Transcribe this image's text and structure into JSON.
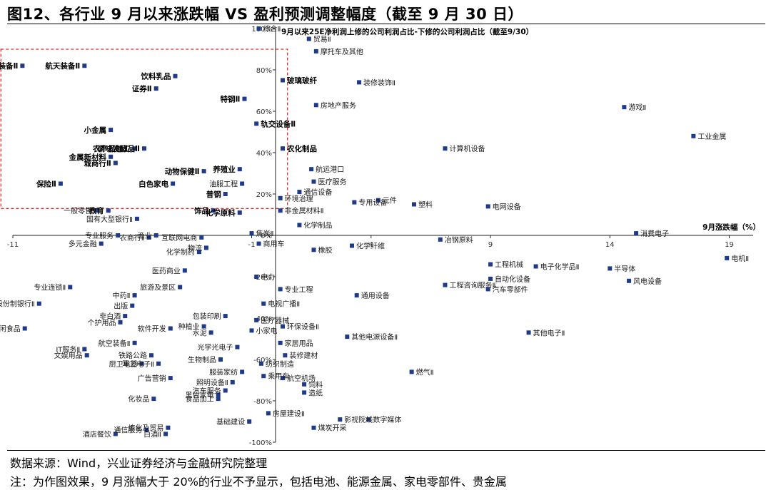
{
  "figure": {
    "title": "图12、各行业 9 月以来涨跌幅 VS 盈利预测调整幅度（截至 9 月 30 日）",
    "source": "数据来源：Wind，兴业证券经济与金融研究院整理",
    "note": "注：为作图效果，9 月涨幅大于 20%的行业不予显示，包括电池、能源金属、家电零部件、贵金属"
  },
  "chart_data": {
    "type": "scatter",
    "xlabel": "9月涨跌幅（%）",
    "ylabel": "9月以来25E净利润上修的公司利润占比-下修的公司利润占比（截至9/30）",
    "xlim": [
      -11,
      20
    ],
    "ylim": [
      -1,
      1
    ],
    "x_ticks": [
      -11,
      -1,
      4,
      9,
      14,
      19
    ],
    "x_tick_labels": [
      "-11",
      "-1",
      "4",
      "9",
      "14",
      "19"
    ],
    "y_ticks": [
      1,
      0.8,
      0.6,
      0.4,
      0.2,
      0,
      -0.2,
      -0.4,
      -0.6,
      -0.8,
      -1
    ],
    "y_tick_labels": [
      "100%",
      "80%",
      "60%",
      "40%",
      "20%",
      "0%",
      "-20%",
      "-40%",
      "-60%",
      "-80%",
      "-100%"
    ],
    "grid": false,
    "marker_color": "#1f3a8a",
    "highlight_box_color": "#e0302a",
    "highlight_box": {
      "x": [
        -11.5,
        0.5
      ],
      "y": [
        0.13,
        0.9
      ]
    },
    "points": [
      {
        "name": "综合Ⅱ",
        "x": -0.7,
        "y": 1.0,
        "bold": false
      },
      {
        "name": "贸易Ⅱ",
        "x": 1.4,
        "y": 0.95,
        "bold": false
      },
      {
        "name": "摩托车及其他",
        "x": 1.7,
        "y": 0.89,
        "bold": false
      },
      {
        "name": "航海装备Ⅱ",
        "x": -10.6,
        "y": 0.82,
        "bold": true
      },
      {
        "name": "航天装备Ⅱ",
        "x": -8.0,
        "y": 0.82,
        "bold": true
      },
      {
        "name": "饮料乳品",
        "x": -4.2,
        "y": 0.77,
        "bold": true
      },
      {
        "name": "证券Ⅱ",
        "x": -5.0,
        "y": 0.71,
        "bold": true
      },
      {
        "name": "玻璃玻纤",
        "x": 0.3,
        "y": 0.75,
        "bold": true
      },
      {
        "name": "装修装饰Ⅱ",
        "x": 3.5,
        "y": 0.74,
        "bold": false
      },
      {
        "name": "特钢Ⅱ",
        "x": -1.3,
        "y": 0.66,
        "bold": true
      },
      {
        "name": "房地产服务",
        "x": 1.7,
        "y": 0.63,
        "bold": false
      },
      {
        "name": "游戏Ⅱ",
        "x": 14.6,
        "y": 0.62,
        "bold": false
      },
      {
        "name": "轨交设备Ⅱ",
        "x": -0.8,
        "y": 0.54,
        "bold": true
      },
      {
        "name": "工业金属",
        "x": 17.5,
        "y": 0.48,
        "bold": false
      },
      {
        "name": "小金属",
        "x": -6.9,
        "y": 0.51,
        "bold": true
      },
      {
        "name": "农化制品",
        "x": 0.3,
        "y": 0.42,
        "bold": true
      },
      {
        "name": "计算机设备",
        "x": 7.1,
        "y": 0.42,
        "bold": false
      },
      {
        "name": "农产品加工",
        "x": -5.9,
        "y": 0.42,
        "bold": true
      },
      {
        "name": "调味发酵品Ⅱ",
        "x": -5.5,
        "y": 0.42,
        "bold": true
      },
      {
        "name": "金属新材料",
        "x": -6.9,
        "y": 0.38,
        "bold": true
      },
      {
        "name": "城商行Ⅱ",
        "x": -6.7,
        "y": 0.35,
        "bold": true
      },
      {
        "name": "动物保健Ⅱ",
        "x": -3.0,
        "y": 0.31,
        "bold": true
      },
      {
        "name": "养殖业",
        "x": -1.5,
        "y": 0.32,
        "bold": true
      },
      {
        "name": "航运港口",
        "x": 1.5,
        "y": 0.32,
        "bold": false
      },
      {
        "name": "保险Ⅱ",
        "x": -9.0,
        "y": 0.25,
        "bold": true
      },
      {
        "name": "白色家电",
        "x": -4.3,
        "y": 0.25,
        "bold": true
      },
      {
        "name": "医疗服务",
        "x": 1.6,
        "y": 0.26,
        "bold": false
      },
      {
        "name": "油服工程",
        "x": -1.4,
        "y": 0.25,
        "bold": false
      },
      {
        "name": "通信设备",
        "x": 1.0,
        "y": 0.21,
        "bold": false
      },
      {
        "name": "普钢",
        "x": -2.1,
        "y": 0.2,
        "bold": true
      },
      {
        "name": "元件",
        "x": 4.3,
        "y": 0.17,
        "bold": false
      },
      {
        "name": "塑料",
        "x": 5.8,
        "y": 0.15,
        "bold": false
      },
      {
        "name": "专用设备",
        "x": 3.3,
        "y": 0.16,
        "bold": false
      },
      {
        "name": "环境治理",
        "x": 0.2,
        "y": 0.18,
        "bold": false
      },
      {
        "name": "电网设备",
        "x": 8.9,
        "y": 0.14,
        "bold": false
      },
      {
        "name": "教育",
        "x": -7.0,
        "y": 0.12,
        "bold": true
      },
      {
        "name": "一般零售",
        "x": -7.5,
        "y": 0.12,
        "bold": false
      },
      {
        "name": "饰品",
        "x": -2.6,
        "y": 0.12,
        "bold": true
      },
      {
        "name": "化学原料",
        "x": -1.5,
        "y": 0.11,
        "bold": true
      },
      {
        "name": "非金属材料Ⅱ",
        "x": 0.2,
        "y": 0.12,
        "bold": false
      },
      {
        "name": "国有大型银行Ⅱ",
        "x": -5.8,
        "y": 0.08,
        "bold": false
      },
      {
        "name": "化学制品",
        "x": 1.0,
        "y": 0.05,
        "bold": false
      },
      {
        "name": "消费电子",
        "x": 15.1,
        "y": 0.01,
        "bold": false
      },
      {
        "name": "焦炭Ⅱ",
        "x": -1.0,
        "y": 0.01,
        "bold": false
      },
      {
        "name": "专业服务",
        "x": -6.6,
        "y": 0.0,
        "bold": false
      },
      {
        "name": "渔业",
        "x": -5.0,
        "y": 0.0,
        "bold": false
      },
      {
        "name": "农商行Ⅱ",
        "x": -5.3,
        "y": -0.01,
        "bold": false
      },
      {
        "name": "互联网电商",
        "x": -3.1,
        "y": -0.01,
        "bold": false
      },
      {
        "name": "商用车",
        "x": -0.7,
        "y": -0.04,
        "bold": false
      },
      {
        "name": "化学纤维",
        "x": 3.2,
        "y": -0.05,
        "bold": false
      },
      {
        "name": "冶钢原料",
        "x": 6.9,
        "y": -0.02,
        "bold": false
      },
      {
        "name": "多元金融",
        "x": -7.3,
        "y": -0.04,
        "bold": false
      },
      {
        "name": "物流",
        "x": -2.9,
        "y": -0.06,
        "bold": false
      },
      {
        "name": "化学制药",
        "x": -3.2,
        "y": -0.08,
        "bold": false
      },
      {
        "name": "橡胶",
        "x": 1.6,
        "y": -0.07,
        "bold": false
      },
      {
        "name": "电机Ⅱ",
        "x": 18.9,
        "y": -0.11,
        "bold": false
      },
      {
        "name": "工程机械",
        "x": 9.0,
        "y": -0.14,
        "bold": false
      },
      {
        "name": "电子化学品Ⅱ",
        "x": 10.9,
        "y": -0.15,
        "bold": false
      },
      {
        "name": "半导体",
        "x": 14.0,
        "y": -0.16,
        "bold": false
      },
      {
        "name": "医药商业",
        "x": -3.8,
        "y": -0.17,
        "bold": false
      },
      {
        "name": "电力",
        "x": -0.8,
        "y": -0.2,
        "bold": false
      },
      {
        "name": "自动化设备",
        "x": 9.0,
        "y": -0.21,
        "bold": false
      },
      {
        "name": "风电设备",
        "x": 14.8,
        "y": -0.22,
        "bold": false
      },
      {
        "name": "专业连锁Ⅱ",
        "x": -8.6,
        "y": -0.25,
        "bold": false
      },
      {
        "name": "旅游及景区",
        "x": -4.0,
        "y": -0.25,
        "bold": false
      },
      {
        "name": "工程咨询服务Ⅱ",
        "x": 7.1,
        "y": -0.24,
        "bold": false
      },
      {
        "name": "汽车零部件",
        "x": 8.9,
        "y": -0.26,
        "bold": false
      },
      {
        "name": "专业工程",
        "x": 0.2,
        "y": -0.26,
        "bold": false
      },
      {
        "name": "通用设备",
        "x": 3.4,
        "y": -0.29,
        "bold": false
      },
      {
        "name": "中药Ⅱ",
        "x": -5.9,
        "y": -0.29,
        "bold": false
      },
      {
        "name": "股份制银行Ⅱ",
        "x": -9.9,
        "y": -0.33,
        "bold": false
      },
      {
        "name": "出版",
        "x": -6.0,
        "y": -0.34,
        "bold": false
      },
      {
        "name": "电视广播Ⅱ",
        "x": -0.5,
        "y": -0.33,
        "bold": false
      },
      {
        "name": "包装印刷",
        "x": -2.1,
        "y": -0.39,
        "bold": false
      },
      {
        "name": "非白酒",
        "x": -6.3,
        "y": -0.39,
        "bold": false
      },
      {
        "name": "医疗器械",
        "x": -0.8,
        "y": -0.41,
        "bold": false
      },
      {
        "name": "个护用品",
        "x": -6.5,
        "y": -0.42,
        "bold": false
      },
      {
        "name": "软件开发",
        "x": -4.4,
        "y": -0.45,
        "bold": false
      },
      {
        "name": "环保设备Ⅱ",
        "x": 0.3,
        "y": -0.44,
        "bold": false
      },
      {
        "name": "种植业",
        "x": -3.0,
        "y": -0.44,
        "bold": false
      },
      {
        "name": "休闲食品",
        "x": -10.5,
        "y": -0.45,
        "bold": false
      },
      {
        "name": "水泥",
        "x": -2.7,
        "y": -0.47,
        "bold": false
      },
      {
        "name": "小家电",
        "x": -1.0,
        "y": -0.46,
        "bold": false
      },
      {
        "name": "其他电子Ⅱ",
        "x": 10.6,
        "y": -0.47,
        "bold": false
      },
      {
        "name": "其他电源设备Ⅱ",
        "x": 3.0,
        "y": -0.49,
        "bold": false
      },
      {
        "name": "家居用品",
        "x": 0.2,
        "y": -0.52,
        "bold": false
      },
      {
        "name": "航空装备Ⅱ",
        "x": -5.9,
        "y": -0.52,
        "bold": false
      },
      {
        "name": "光学光电子",
        "x": -1.6,
        "y": -0.54,
        "bold": false
      },
      {
        "name": "IT服务Ⅱ",
        "x": -8.0,
        "y": -0.55,
        "bold": false
      },
      {
        "name": "铁路公路",
        "x": -5.2,
        "y": -0.58,
        "bold": false
      },
      {
        "name": "装修建材",
        "x": 0.4,
        "y": -0.58,
        "bold": false
      },
      {
        "name": "文娱用品",
        "x": -7.9,
        "y": -0.58,
        "bold": false
      },
      {
        "name": "生物制品",
        "x": -2.3,
        "y": -0.6,
        "bold": false
      },
      {
        "name": "厨卫电器",
        "x": -5.6,
        "y": -0.62,
        "bold": false
      },
      {
        "name": "军工电子Ⅱ",
        "x": -4.9,
        "y": -0.62,
        "bold": false
      },
      {
        "name": "纺织制造",
        "x": -0.6,
        "y": -0.62,
        "bold": false
      },
      {
        "name": "服装家纺",
        "x": -1.4,
        "y": -0.66,
        "bold": false
      },
      {
        "name": "乘用车",
        "x": -0.5,
        "y": -0.68,
        "bold": false
      },
      {
        "name": "航空机场",
        "x": 0.3,
        "y": -0.69,
        "bold": false
      },
      {
        "name": "燃气Ⅱ",
        "x": 5.7,
        "y": -0.66,
        "bold": false
      },
      {
        "name": "广告营销",
        "x": -4.4,
        "y": -0.69,
        "bold": false
      },
      {
        "name": "照明设备Ⅱ",
        "x": -1.8,
        "y": -0.71,
        "bold": false
      },
      {
        "name": "饲料",
        "x": 1.2,
        "y": -0.72,
        "bold": false
      },
      {
        "name": "汽车服务",
        "x": -2.1,
        "y": -0.75,
        "bold": false
      },
      {
        "name": "造纸",
        "x": 1.2,
        "y": -0.76,
        "bold": false
      },
      {
        "name": "黑色家电",
        "x": -2.4,
        "y": -0.77,
        "bold": false
      },
      {
        "name": "化妆品",
        "x": -5.1,
        "y": -0.79,
        "bold": false
      },
      {
        "name": "食品加工",
        "x": -2.4,
        "y": -0.79,
        "bold": false
      },
      {
        "name": "房屋建设Ⅱ",
        "x": -0.3,
        "y": -0.86,
        "bold": false
      },
      {
        "name": "基础建设",
        "x": -1.1,
        "y": -0.9,
        "bold": false
      },
      {
        "name": "影视院线",
        "x": 2.7,
        "y": -0.89,
        "bold": false
      },
      {
        "name": "数字媒体",
        "x": 3.9,
        "y": -0.89,
        "bold": false
      },
      {
        "name": "炼化及贸易",
        "x": -4.5,
        "y": -0.93,
        "bold": false
      },
      {
        "name": "煤炭开采",
        "x": 1.6,
        "y": -0.93,
        "bold": false
      },
      {
        "name": "通信服务",
        "x": -5.4,
        "y": -0.94,
        "bold": false
      },
      {
        "name": "酒店餐饮",
        "x": -6.7,
        "y": -0.96,
        "bold": false
      },
      {
        "name": "白酒Ⅱ",
        "x": -4.6,
        "y": -0.96,
        "bold": false
      }
    ]
  }
}
